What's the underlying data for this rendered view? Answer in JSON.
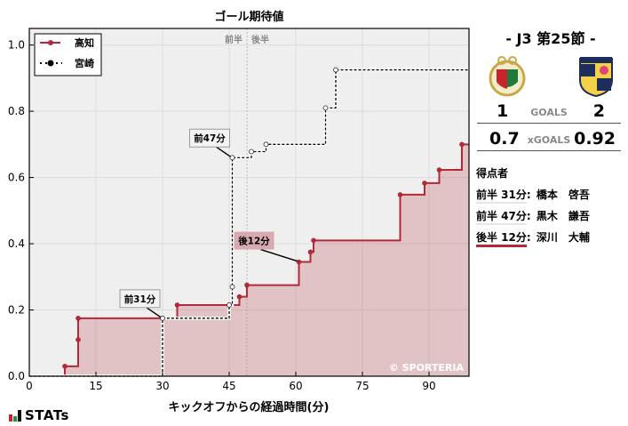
{
  "chart_data": {
    "type": "line",
    "subtype": "step",
    "title": "ゴール期待値",
    "xlabel": "キックオフからの経過時間(分)",
    "ylabel": "",
    "xlim": [
      0,
      99
    ],
    "ylim": [
      0,
      1.05
    ],
    "xticks": [
      0,
      15,
      30,
      45,
      60,
      75,
      90
    ],
    "yticks": [
      0.0,
      0.2,
      0.4,
      0.6,
      0.8,
      1.0
    ],
    "ytick_labels": [
      "0.0",
      "0.2",
      "0.4",
      "0.6",
      "0.8",
      "1.0"
    ],
    "grid": true,
    "legend_position": "upper left",
    "halftime_marker": {
      "x": 49,
      "labels": [
        "前半",
        "後半"
      ]
    },
    "series": [
      {
        "name": "高知",
        "color": "#b22a37",
        "style": "solid",
        "filled": true,
        "points": [
          [
            0,
            0.0
          ],
          [
            8,
            0.03
          ],
          [
            11,
            0.11
          ],
          [
            11,
            0.175
          ],
          [
            33.3,
            0.215
          ],
          [
            47.3,
            0.24
          ],
          [
            49,
            0.275
          ],
          [
            60.7,
            0.345
          ],
          [
            63.3,
            0.375
          ],
          [
            64,
            0.41
          ],
          [
            83.5,
            0.548
          ],
          [
            89,
            0.583
          ],
          [
            92.3,
            0.623
          ],
          [
            97.4,
            0.7
          ],
          [
            99,
            0.7
          ]
        ]
      },
      {
        "name": "宮崎",
        "color": "#000000",
        "style": "dotted",
        "filled": false,
        "points": [
          [
            0,
            0.0
          ],
          [
            30,
            0.175
          ],
          [
            45,
            0.215
          ],
          [
            45.7,
            0.27
          ],
          [
            45.7,
            0.66
          ],
          [
            50,
            0.678
          ],
          [
            53.3,
            0.7
          ],
          [
            66.7,
            0.81
          ],
          [
            69,
            0.925
          ],
          [
            99,
            0.925
          ]
        ]
      }
    ],
    "annotations": [
      {
        "text": "前31分",
        "x": 30,
        "y": 0.175,
        "team": "宮崎"
      },
      {
        "text": "前47分",
        "x": 45.7,
        "y": 0.66,
        "team": "宮崎"
      },
      {
        "text": "後12分",
        "x": 60.7,
        "y": 0.345,
        "team": "高知"
      }
    ],
    "watermark": "© SPORTERIA"
  },
  "header": {
    "round": "- J3 第25節 -"
  },
  "match": {
    "home_team": "高知",
    "away_team": "宮崎",
    "home_goals": "1",
    "away_goals": "2",
    "goals_label": "GOALS",
    "home_xg": "0.7",
    "away_xg": "0.92",
    "xg_label": "xGOALS"
  },
  "scorers": {
    "title": "得点者",
    "items": [
      {
        "when": "前半 31分",
        "name": "橋本　啓吾",
        "team": "宮崎"
      },
      {
        "when": "前半 47分",
        "name": "黒木　謙吾",
        "team": "宮崎"
      },
      {
        "when": "後半 12分",
        "name": "深川　大輔",
        "team": "高知"
      }
    ]
  },
  "branding": {
    "logo_text": "STATs"
  }
}
